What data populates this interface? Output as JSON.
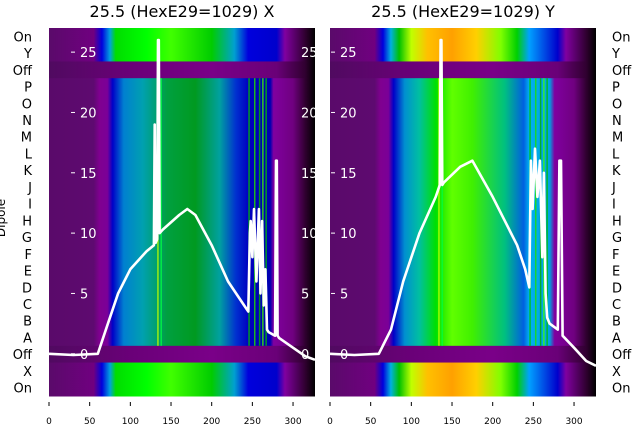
{
  "chart_data": [
    {
      "type": "heatmap",
      "title": "25.5 (HexE29=1029) X",
      "ylabel": "Dipole",
      "row_labels": [
        "On",
        "Y",
        "Off",
        "P",
        "O",
        "N",
        "M",
        "L",
        "K",
        "J",
        "I",
        "H",
        "G",
        "F",
        "E",
        "D",
        "C",
        "B",
        "A",
        "Off",
        "X",
        "On"
      ],
      "xticks": [
        0,
        50,
        100,
        150,
        200,
        250,
        300
      ],
      "xlim": [
        0,
        327
      ],
      "overlay_yticks": [
        0,
        5,
        10,
        15,
        20,
        25
      ],
      "overlay_ylim": [
        -3.5,
        27
      ],
      "overlay_line": {
        "x": [
          0,
          30,
          60,
          70,
          85,
          100,
          120,
          129,
          130,
          131,
          133,
          134,
          135,
          136,
          140,
          160,
          170,
          180,
          200,
          220,
          240,
          245,
          247,
          248,
          250,
          252,
          255,
          258,
          260,
          262,
          264,
          266,
          268,
          270,
          278,
          279,
          280,
          281,
          283,
          300,
          315,
          327
        ],
        "y": [
          0,
          -0.1,
          0,
          2,
          5,
          7,
          8.5,
          9,
          19,
          9.2,
          9.5,
          26,
          26,
          10,
          10.3,
          11.5,
          12,
          11.5,
          9,
          6,
          4,
          3.5,
          10,
          11,
          8,
          12,
          6,
          12,
          5,
          11,
          4,
          7,
          2,
          1.8,
          1.5,
          16,
          16,
          1.5,
          1.3,
          0.5,
          -0.2,
          -0.5
        ]
      }
    },
    {
      "type": "heatmap",
      "title": "25.5 (HexE29=1029) Y",
      "row_labels": [
        "On",
        "Y",
        "Off",
        "P",
        "O",
        "N",
        "M",
        "L",
        "K",
        "J",
        "I",
        "H",
        "G",
        "F",
        "E",
        "D",
        "C",
        "B",
        "A",
        "Off",
        "X",
        "On"
      ],
      "xticks": [
        0,
        50,
        100,
        150,
        200,
        250,
        300
      ],
      "xlim": [
        0,
        327
      ],
      "overlay_yticks": [
        0,
        5,
        10,
        15,
        20,
        25
      ],
      "overlay_ylim": [
        -3.5,
        27
      ],
      "overlay_line": {
        "x": [
          0,
          30,
          60,
          75,
          90,
          110,
          130,
          135,
          136,
          137,
          138,
          140,
          160,
          175,
          200,
          230,
          240,
          245,
          247,
          249,
          252,
          255,
          258,
          261,
          263,
          265,
          267,
          270,
          280,
          282,
          284,
          286,
          300,
          315,
          327
        ],
        "y": [
          0,
          -0.1,
          0,
          2,
          6,
          10,
          13,
          14,
          26,
          26,
          14,
          14.2,
          15.5,
          16,
          13,
          9,
          7,
          5.5,
          16,
          12,
          17,
          13,
          16,
          8,
          15,
          5,
          3,
          2.5,
          2,
          16,
          16,
          1.5,
          0.5,
          -0.6,
          -1
        ]
      }
    }
  ]
}
